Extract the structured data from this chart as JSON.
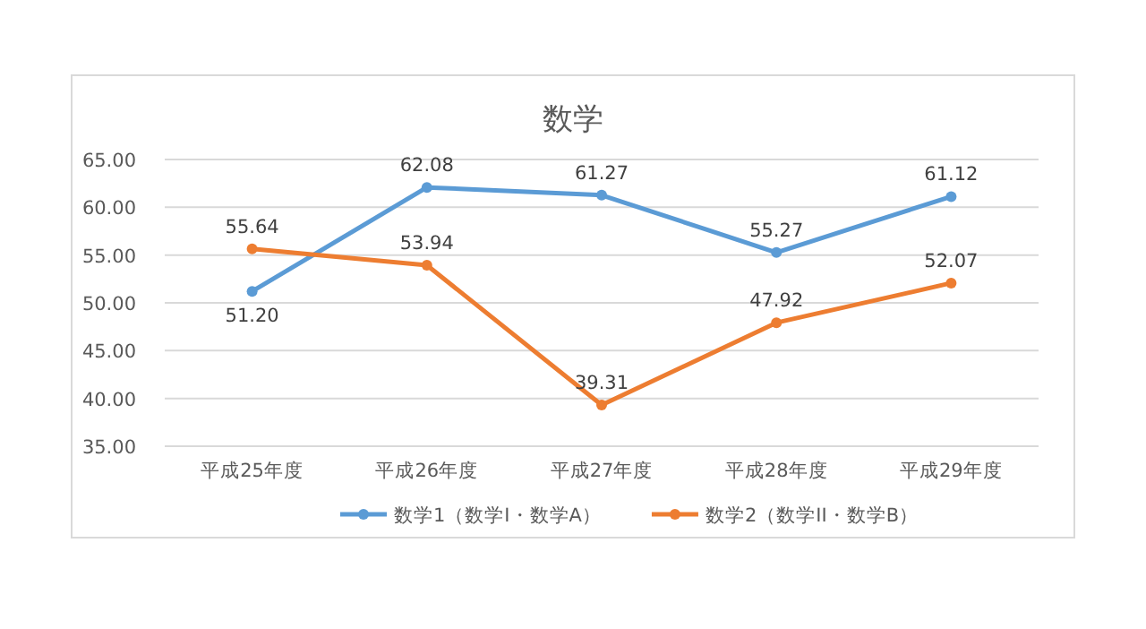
{
  "chart_data": {
    "type": "line",
    "title": "数学",
    "categories": [
      "平成25年度",
      "平成26年度",
      "平成27年度",
      "平成28年度",
      "平成29年度"
    ],
    "series": [
      {
        "name": "数学1（数学I・数学A）",
        "color": "#5b9bd5",
        "values": [
          51.2,
          62.08,
          61.27,
          55.27,
          61.12
        ],
        "value_labels": [
          "51.20",
          "62.08",
          "61.27",
          "55.27",
          "61.12"
        ]
      },
      {
        "name": "数学2（数学II・数学B）",
        "color": "#ed7d31",
        "values": [
          55.64,
          53.94,
          39.31,
          47.92,
          52.07
        ],
        "value_labels": [
          "55.64",
          "53.94",
          "39.31",
          "47.92",
          "52.07"
        ]
      }
    ],
    "ylim": [
      35,
      65
    ],
    "yticks": [
      {
        "value": 35,
        "label": "35.00"
      },
      {
        "value": 40,
        "label": "40.00"
      },
      {
        "value": 45,
        "label": "45.00"
      },
      {
        "value": 50,
        "label": "50.00"
      },
      {
        "value": 55,
        "label": "55.00"
      },
      {
        "value": 60,
        "label": "60.00"
      },
      {
        "value": 65,
        "label": "65.00"
      }
    ],
    "grid": "y",
    "legend": "bottom",
    "marker": "circle",
    "line_style": "solid"
  }
}
